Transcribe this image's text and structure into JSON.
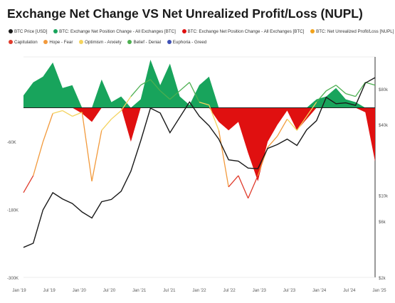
{
  "title": "Exchange Net Change VS Net Unrealized Profit/Loss (NUPL)",
  "legend": [
    {
      "label": "BTC Price [USD]",
      "color": "#1a1a1a"
    },
    {
      "label": "BTC: Exchange Net Position Change - All Exchanges [BTC]",
      "color": "#18a45c"
    },
    {
      "label": "BTC: Exchange Net Position Change - All Exchanges [BTC]",
      "color": "#e01010"
    },
    {
      "label": "BTC: Net Unrealized Profit/Loss [NUPL]",
      "color": "#f2a31b"
    },
    {
      "label": "Capitulation",
      "color": "#e03b2c"
    },
    {
      "label": "Hope - Fear",
      "color": "#f29a3c"
    },
    {
      "label": "Optimism - Anxiety",
      "color": "#f4d35e"
    },
    {
      "label": "Belief - Denial",
      "color": "#4caf50"
    },
    {
      "label": "Euphoria - Greed",
      "color": "#3f51b5"
    }
  ],
  "chart_data": {
    "type": "area",
    "title": "Exchange Net Change VS Net Unrealized Profit/Loss (NUPL)",
    "x_tick_labels": [
      "Jan '19",
      "Jul '19",
      "Jan '20",
      "Jul '20",
      "Jan '21",
      "Jul '21",
      "Jan '22",
      "Jul '22",
      "Jan '23",
      "Jul '23",
      "Jan '24",
      "Jul '24",
      "Jan '25"
    ],
    "left_axis": {
      "tick_labels": [
        "-60K",
        "-180K",
        "-300K"
      ],
      "tick_values": [
        -60000,
        -180000,
        -300000
      ],
      "range": [
        -300000,
        90000
      ]
    },
    "right_axis": {
      "scale": "log",
      "tick_labels": [
        "$80k",
        "$40k",
        "$10k",
        "$6k",
        "$2k"
      ],
      "tick_values": [
        80000,
        40000,
        10000,
        6000,
        2000
      ],
      "range": [
        2000,
        150000
      ]
    },
    "x": [
      "Jan '19",
      "Mar '19",
      "May '19",
      "Jul '19",
      "Sep '19",
      "Nov '19",
      "Jan '20",
      "Mar '20",
      "May '20",
      "Jul '20",
      "Sep '20",
      "Nov '20",
      "Jan '21",
      "Mar '21",
      "May '21",
      "Jul '21",
      "Sep '21",
      "Nov '21",
      "Jan '22",
      "Mar '22",
      "May '22",
      "Jul '22",
      "Sep '22",
      "Nov '22",
      "Jan '23",
      "Mar '23",
      "May '23",
      "Jul '23",
      "Sep '23",
      "Nov '23",
      "Jan '24",
      "Mar '24",
      "May '24",
      "Jul '24",
      "Sep '24",
      "Nov '24",
      "Jan '25"
    ],
    "series": [
      {
        "name": "BTC Price [USD]",
        "axis": "right",
        "color": "#1a1a1a",
        "values": [
          3600,
          3900,
          7500,
          10500,
          9300,
          8500,
          7200,
          6400,
          8800,
          9200,
          10800,
          16000,
          29000,
          55000,
          50000,
          34000,
          46000,
          62000,
          47000,
          39000,
          30000,
          20000,
          19500,
          17000,
          16800,
          25000,
          27000,
          30000,
          26500,
          36000,
          43000,
          68000,
          60000,
          61000,
          58000,
          90000,
          100000
        ]
      },
      {
        "name": "BTC: Exchange Net Position Change - All Exchanges [BTC]",
        "axis": "left",
        "color": "#18a45c",
        "values": [
          22000,
          45000,
          55000,
          80000,
          35000,
          40000,
          -10000,
          -25000,
          50000,
          10000,
          20000,
          -60000,
          15000,
          85000,
          40000,
          78000,
          20000,
          5000,
          40000,
          55000,
          -25000,
          -40000,
          -25000,
          -80000,
          -130000,
          -60000,
          -30000,
          -5000,
          -40000,
          -20000,
          15000,
          20000,
          35000,
          15000,
          10000,
          -8000,
          -95000
        ]
      },
      {
        "name": "BTC: Net Unrealized Profit/Loss [NUPL]",
        "axis": "left",
        "color": "#f2a31b",
        "values": [
          -150000,
          -120000,
          -60000,
          -10000,
          -5000,
          -15000,
          -8000,
          -130000,
          -40000,
          -20000,
          -5000,
          20000,
          40000,
          50000,
          30000,
          15000,
          30000,
          45000,
          10000,
          5000,
          -40000,
          -140000,
          -120000,
          -160000,
          -120000,
          -70000,
          -50000,
          -20000,
          -40000,
          -15000,
          10000,
          30000,
          40000,
          25000,
          20000,
          45000,
          40000
        ]
      }
    ],
    "grid": false,
    "legend_position": "top"
  }
}
